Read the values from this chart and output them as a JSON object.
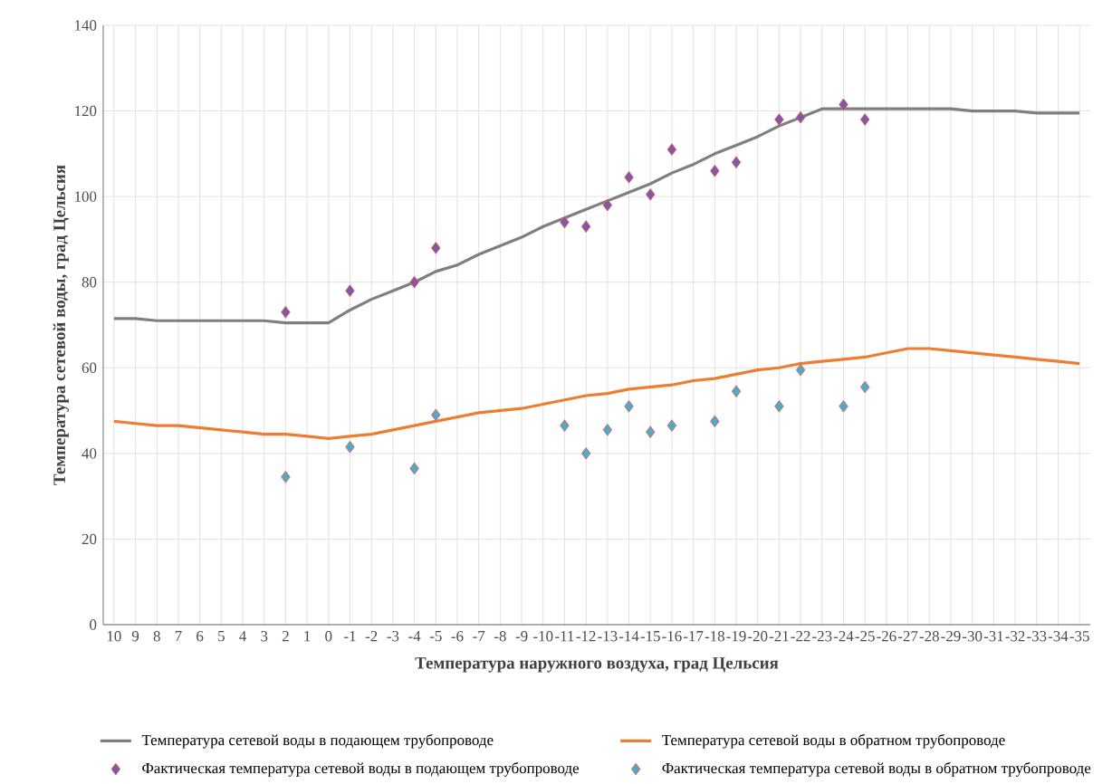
{
  "chart_data": {
    "type": "line",
    "xlabel": "Температура наружного воздуха, град Цельсия",
    "ylabel": "Температура сетевой воды, град Цельсия",
    "categories": [
      "10",
      "9",
      "8",
      "7",
      "6",
      "5",
      "4",
      "3",
      "2",
      "1",
      "0",
      "-1",
      "-2",
      "-3",
      "-4",
      "-5",
      "-6",
      "-7",
      "-8",
      "-9",
      "-10",
      "-11",
      "-12",
      "-13",
      "-14",
      "-15",
      "-16",
      "-17",
      "-18",
      "-19",
      "-20",
      "-21",
      "-22",
      "-23",
      "-24",
      "-25",
      "-26",
      "-27",
      "-28",
      "-29",
      "-30",
      "-31",
      "-32",
      "-33",
      "-34",
      "-35"
    ],
    "ylim": [
      0,
      140
    ],
    "yticks": [
      0,
      20,
      40,
      60,
      80,
      100,
      120,
      140
    ],
    "grid": true,
    "legend": "bottom",
    "series": [
      {
        "name": "Температура сетевой воды в подающем трубопроводе",
        "color": "#7f7f7f",
        "marker": "none",
        "values": [
          71.5,
          71.5,
          71,
          71,
          71,
          71,
          71,
          71,
          70.5,
          70.5,
          70.5,
          73.5,
          76,
          78,
          80,
          82.5,
          84,
          86.5,
          88.5,
          90.5,
          93,
          95,
          97,
          99,
          101,
          103,
          105.5,
          107.5,
          110,
          112,
          114,
          116.5,
          118.5,
          120.5,
          120.5,
          120.5,
          120.5,
          120.5,
          120.5,
          120.5,
          120,
          120,
          120,
          119.5,
          119.5,
          119.5
        ]
      },
      {
        "name": "Температура сетевой воды в обратном трубопроводе",
        "color": "#ed7d31",
        "marker": "none",
        "values": [
          47.5,
          47,
          46.5,
          46.5,
          46,
          45.5,
          45,
          44.5,
          44.5,
          44,
          43.5,
          44,
          44.5,
          45.5,
          46.5,
          47.5,
          48.5,
          49.5,
          50,
          50.5,
          51.5,
          52.5,
          53.5,
          54,
          55,
          55.5,
          56,
          57,
          57.5,
          58.5,
          59.5,
          60,
          61,
          61.5,
          62,
          62.5,
          63.5,
          64.5,
          64.5,
          64,
          63.5,
          63,
          62.5,
          62,
          61.5,
          61
        ]
      },
      {
        "name": "Фактическая температура сетевой воды в подающем трубопроводе",
        "type": "scatter",
        "color": "#7b5aa6",
        "marker": "diamond",
        "values": [
          null,
          null,
          null,
          null,
          null,
          null,
          null,
          null,
          73,
          null,
          null,
          78,
          null,
          null,
          80,
          88,
          null,
          null,
          null,
          null,
          null,
          94,
          93,
          98,
          104.5,
          100.5,
          111,
          null,
          106,
          108,
          null,
          118,
          118.5,
          null,
          121.5,
          118,
          null,
          null,
          null,
          null,
          null,
          null,
          null,
          null,
          null,
          null
        ]
      },
      {
        "name": "Фактическая температура сетевой воды в обратном трубопроводе",
        "type": "scatter",
        "color": "#4bacc6",
        "marker": "diamond",
        "values": [
          null,
          null,
          null,
          null,
          null,
          null,
          null,
          null,
          34.5,
          null,
          null,
          41.5,
          null,
          null,
          36.5,
          49,
          null,
          null,
          null,
          null,
          null,
          46.5,
          40,
          45.5,
          51,
          45,
          46.5,
          null,
          47.5,
          54.5,
          null,
          51,
          59.5,
          null,
          51,
          55.5,
          null,
          null,
          null,
          null,
          null,
          null,
          null,
          null,
          null,
          null
        ]
      }
    ]
  }
}
